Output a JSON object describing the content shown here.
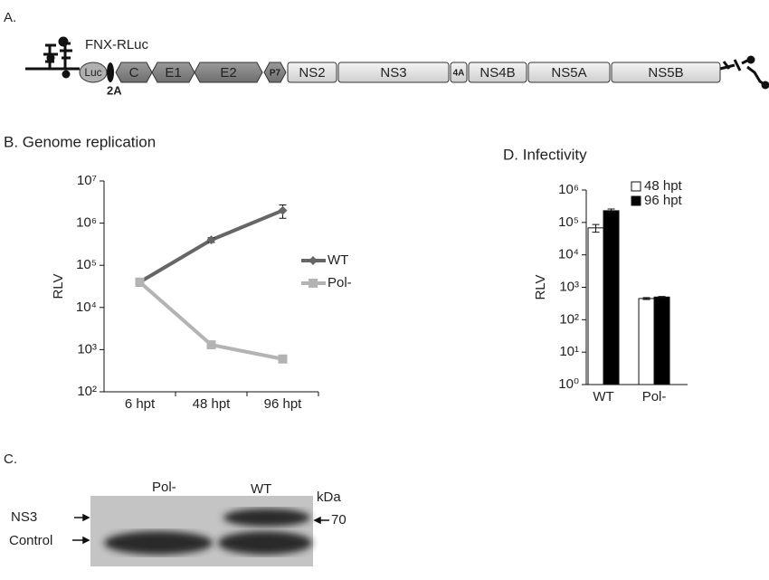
{
  "panel_a": {
    "label": "A.",
    "construct": "FNX-RLuc",
    "marker": "2A",
    "segments": [
      "Luc",
      "C",
      "E1",
      "E2",
      "P7",
      "NS2",
      "NS3",
      "4A",
      "NS4B",
      "NS5A",
      "NS5B"
    ]
  },
  "chart_data": [
    {
      "type": "line",
      "title": "B. Genome replication",
      "ylabel": "RLV",
      "log_y": true,
      "categories": [
        "6 hpt",
        "48 hpt",
        "96 hpt"
      ],
      "series": [
        {
          "name": "WT",
          "color": "#666666",
          "marker": "diamond",
          "values": [
            40000,
            400000,
            2000000
          ],
          "errors": [
            8000,
            50000,
            700000
          ]
        },
        {
          "name": "Pol-",
          "color": "#b3b3b3",
          "marker": "square",
          "values": [
            40000,
            1300,
            600
          ],
          "errors": [
            5000,
            150,
            70
          ]
        }
      ],
      "ylim": [
        100,
        10000000
      ],
      "yticks": [
        {
          "value": 100,
          "label": "10²"
        },
        {
          "value": 1000,
          "label": "10³"
        },
        {
          "value": 10000,
          "label": "10⁴"
        },
        {
          "value": 100000,
          "label": "10⁵"
        },
        {
          "value": 1000000,
          "label": "10⁶"
        },
        {
          "value": 10000000,
          "label": "10⁷"
        }
      ],
      "legend": "right"
    },
    {
      "type": "bar",
      "title": "D. Infectivity",
      "ylabel": "RLV",
      "log_y": true,
      "categories": [
        "WT",
        "Pol-"
      ],
      "series": [
        {
          "name": "48 hpt",
          "color": "#ffffff",
          "values": [
            68000,
            450
          ],
          "errors": [
            18000,
            30
          ]
        },
        {
          "name": "96 hpt",
          "color": "#000000",
          "values": [
            230000,
            500
          ],
          "errors": [
            30000,
            20
          ]
        }
      ],
      "ylim": [
        1,
        1000000
      ],
      "yticks": [
        {
          "value": 1,
          "label": "10⁰"
        },
        {
          "value": 10,
          "label": "10¹"
        },
        {
          "value": 100,
          "label": "10²"
        },
        {
          "value": 1000,
          "label": "10³"
        },
        {
          "value": 10000,
          "label": "10⁴"
        },
        {
          "value": 100000,
          "label": "10⁵"
        },
        {
          "value": 1000000,
          "label": "10⁶"
        }
      ],
      "legend": "top"
    }
  ],
  "panel_c": {
    "label": "C.",
    "lanes": [
      "Pol-",
      "WT"
    ],
    "unit": "kDa",
    "bands": [
      "NS3",
      "Control"
    ],
    "size_marker": "70"
  }
}
